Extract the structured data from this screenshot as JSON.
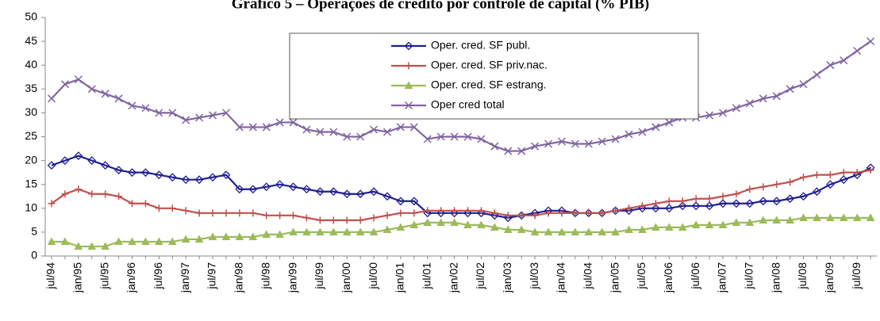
{
  "chart_data": {
    "type": "line",
    "title": "Gráfico 5 – Operações de crédito por controle de capital (% PIB)",
    "categories": [
      "jul/94",
      null,
      "jan/95",
      null,
      "jul/95",
      null,
      "jan/96",
      null,
      "jul/96",
      null,
      "jan/97",
      null,
      "jul/97",
      null,
      "jan/98",
      null,
      "jul/98",
      null,
      "jan/99",
      null,
      "jul/99",
      null,
      "jan/00",
      null,
      "jul/00",
      null,
      "jan/01",
      null,
      "jul/01",
      null,
      "jan/02",
      null,
      "jul/02",
      null,
      "jan/03",
      null,
      "jul/03",
      null,
      "jan/04",
      null,
      "jul/04",
      null,
      "jan/05",
      null,
      "jul/05",
      null,
      "jan/06",
      null,
      "jul/06",
      null,
      "jan/07",
      null,
      "jul/07",
      null,
      "jan/08",
      null,
      "jul/08",
      null,
      "jan/09",
      null,
      "jul/09",
      null
    ],
    "series": [
      {
        "name": "Oper. cred. SF publ.",
        "color": "#1f1f8f",
        "marker": "diamond",
        "values": [
          19,
          20,
          21,
          20,
          19,
          18,
          17.5,
          17.5,
          17,
          16.5,
          16,
          16,
          16.5,
          17,
          14,
          14,
          14.5,
          15,
          14.5,
          14,
          13.5,
          13.5,
          13,
          13,
          13.5,
          12.5,
          11.5,
          11.5,
          9,
          9,
          9,
          9,
          9,
          8.5,
          8,
          8.5,
          9,
          9.5,
          9.5,
          9,
          9,
          9,
          9.5,
          9.5,
          10,
          10,
          10,
          10.5,
          10.5,
          10.5,
          11,
          11,
          11,
          11.5,
          11.5,
          12,
          12.5,
          13.5,
          15,
          16,
          17,
          18.5
        ]
      },
      {
        "name": "Oper. cred. SF priv.nac.",
        "color": "#c0504d",
        "marker": "plus",
        "values": [
          11,
          13,
          14,
          13,
          13,
          12.5,
          11,
          11,
          10,
          10,
          9.5,
          9,
          9,
          9,
          9,
          9,
          8.5,
          8.5,
          8.5,
          8,
          7.5,
          7.5,
          7.5,
          7.5,
          8,
          8.5,
          9,
          9,
          9.5,
          9.5,
          9.5,
          9.5,
          9.5,
          9,
          8.5,
          8.5,
          8.5,
          9,
          9,
          9,
          9,
          9,
          9.5,
          10,
          10.5,
          11,
          11.5,
          11.5,
          12,
          12,
          12.5,
          13,
          14,
          14.5,
          15,
          15.5,
          16.5,
          17,
          17,
          17.5,
          17.5,
          18
        ]
      },
      {
        "name": "Oper. cred. SF estrang.",
        "color": "#9bbb59",
        "marker": "triangle",
        "values": [
          3,
          3,
          2,
          2,
          2,
          3,
          3,
          3,
          3,
          3,
          3.5,
          3.5,
          4,
          4,
          4,
          4,
          4.5,
          4.5,
          5,
          5,
          5,
          5,
          5,
          5,
          5,
          5.5,
          6,
          6.5,
          7,
          7,
          7,
          6.5,
          6.5,
          6,
          5.5,
          5.5,
          5,
          5,
          5,
          5,
          5,
          5,
          5,
          5.5,
          5.5,
          6,
          6,
          6,
          6.5,
          6.5,
          6.5,
          7,
          7,
          7.5,
          7.5,
          7.5,
          8,
          8,
          8,
          8,
          8,
          8
        ]
      },
      {
        "name": "Oper cred total",
        "color": "#8064a2",
        "marker": "x",
        "values": [
          33,
          36,
          37,
          35,
          34,
          33,
          31.5,
          31,
          30,
          30,
          28.5,
          29,
          29.5,
          30,
          27,
          27,
          27,
          28,
          28,
          26.5,
          26,
          26,
          25,
          25,
          26.5,
          26,
          27,
          27,
          24.5,
          25,
          25,
          25,
          24.5,
          23,
          22,
          22,
          23,
          23.5,
          24,
          23.5,
          23.5,
          24,
          24.5,
          25.5,
          26,
          27,
          28,
          29,
          29,
          29.5,
          30,
          31,
          32,
          33,
          33.5,
          35,
          36,
          38,
          40,
          41,
          43,
          45
        ]
      }
    ],
    "ylim": [
      0,
      50
    ],
    "yticks": [
      0,
      5,
      10,
      15,
      20,
      25,
      30,
      35,
      40,
      45,
      50
    ],
    "grid": false,
    "legend": "top-center"
  }
}
